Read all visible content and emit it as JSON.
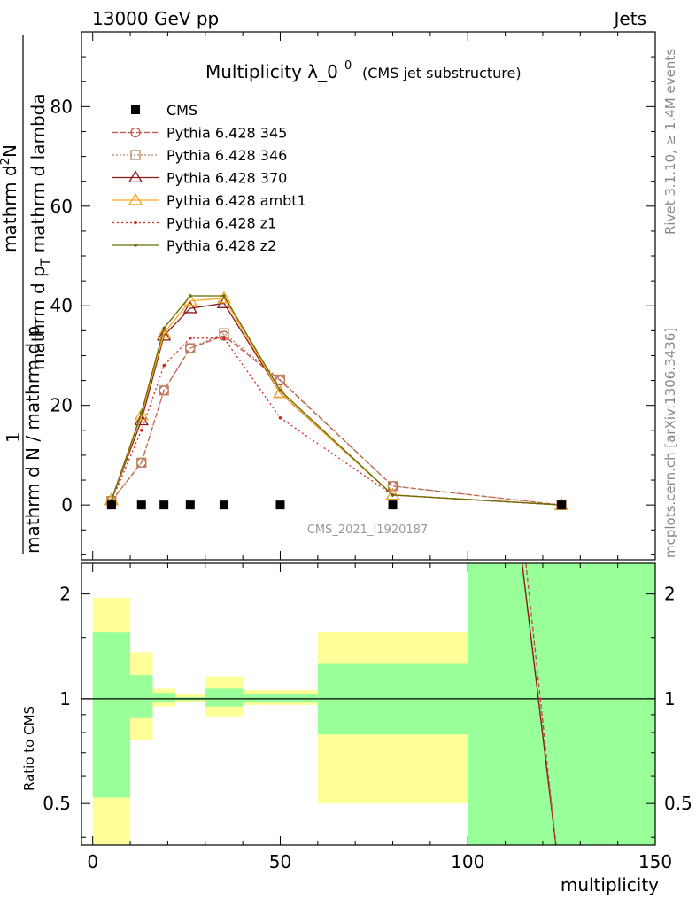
{
  "header": {
    "left": "13000 GeV pp",
    "right": "Jets"
  },
  "side_labels": {
    "rivet": "Rivet 3.1.10, ≥ 1.4M events",
    "mcplots": "mcplots.cern.ch [arXiv:1306.3436]"
  },
  "watermark": "CMS_2021_I1920187",
  "colors": {
    "green_band": "#99ff99",
    "yellow_band": "#ffff99",
    "pythia_345": "#c0504d",
    "pythia_346": "#b8875a",
    "pythia_370": "#8b1a1a",
    "pythia_ambt1": "#f5a623",
    "pythia_z1": "#d42a1a",
    "pythia_z2": "#6b6b00"
  },
  "chart_data": [
    {
      "type": "line",
      "title_main": "Multiplicity λ_0",
      "title_sup": "0",
      "title_sub": "(CMS jet substructure)",
      "ylabel": "1 / mathrm d N / mathrm d p_T mathrm d^2N / mathrm d p_T mathrm d lambda",
      "ylabel_parts": {
        "numerator_top": "mathrm d",
        "numerator_sup": "2",
        "numerator_rest": "N",
        "denominator_top": "mathrm d p",
        "denominator_sub": "T",
        "denominator_rest": " mathrm d lambda",
        "one": "1",
        "den_left": "mathrm d N / mathrm d p",
        "den_sub": "T"
      },
      "xlim": [
        -3,
        150
      ],
      "ylim": [
        -11,
        95
      ],
      "yticks": [
        0,
        20,
        40,
        60,
        80
      ],
      "legend_position": "top-left",
      "series": [
        {
          "name": "CMS",
          "x": [
            5,
            13,
            19,
            26,
            35,
            50,
            80,
            125
          ],
          "y": [
            0,
            0,
            0,
            0,
            0,
            0,
            0,
            0
          ]
        },
        {
          "name": "Pythia 6.428 345",
          "x": [
            5,
            13,
            19,
            26,
            35,
            50,
            80,
            125
          ],
          "y": [
            0.8,
            8.5,
            23,
            31.5,
            34,
            25,
            3.8,
            0
          ]
        },
        {
          "name": "Pythia 6.428 346",
          "x": [
            5,
            13,
            19,
            26,
            35,
            50,
            80,
            125
          ],
          "y": [
            0.8,
            8.5,
            23,
            31.5,
            34.5,
            25.2,
            3.8,
            0
          ]
        },
        {
          "name": "Pythia 6.428 370",
          "x": [
            5,
            13,
            19,
            26,
            35,
            50,
            80,
            125
          ],
          "y": [
            1,
            17,
            34,
            39.5,
            40.5,
            22.5,
            2,
            0
          ]
        },
        {
          "name": "Pythia 6.428 ambt1",
          "x": [
            5,
            13,
            19,
            26,
            35,
            50,
            80,
            125
          ],
          "y": [
            1,
            18,
            34.5,
            41,
            41.5,
            22.5,
            2,
            0
          ]
        },
        {
          "name": "Pythia 6.428 z1",
          "x": [
            5,
            13,
            19,
            26,
            35,
            50,
            80,
            125
          ],
          "y": [
            0.8,
            15,
            28,
            33.5,
            33.5,
            17.5,
            2,
            0
          ]
        },
        {
          "name": "Pythia 6.428 z2",
          "x": [
            5,
            13,
            19,
            26,
            35,
            50,
            80,
            125
          ],
          "y": [
            1,
            18.5,
            35.5,
            42,
            42,
            23,
            2,
            0
          ]
        }
      ]
    },
    {
      "type": "area",
      "ylabel": "Ratio to CMS",
      "xlabel": "multiplicity",
      "xlim": [
        -3,
        150
      ],
      "ylim": [
        0.38,
        2.45
      ],
      "scale": "log",
      "yticks": [
        0.5,
        1,
        2
      ],
      "ytick_labels": [
        "0.5",
        "1",
        "2"
      ],
      "xticks": [
        0,
        50,
        100,
        150
      ],
      "bands": [
        {
          "x0": 0,
          "x1": 10,
          "green": [
            0.52,
            1.55
          ],
          "yellow": [
            0.3,
            1.95
          ]
        },
        {
          "x0": 10,
          "x1": 16,
          "green": [
            0.88,
            1.17
          ],
          "yellow": [
            0.76,
            1.36
          ]
        },
        {
          "x0": 16,
          "x1": 22,
          "green": [
            0.98,
            1.04
          ],
          "yellow": [
            0.95,
            1.07
          ]
        },
        {
          "x0": 22,
          "x1": 30,
          "green": [
            0.99,
            1.01
          ],
          "yellow": [
            0.98,
            1.03
          ]
        },
        {
          "x0": 30,
          "x1": 40,
          "green": [
            0.95,
            1.07
          ],
          "yellow": [
            0.89,
            1.16
          ]
        },
        {
          "x0": 40,
          "x1": 60,
          "green": [
            0.98,
            1.03
          ],
          "yellow": [
            0.96,
            1.06
          ]
        },
        {
          "x0": 60,
          "x1": 100,
          "green": [
            0.79,
            1.26
          ],
          "yellow": [
            0.5,
            1.56
          ]
        },
        {
          "x0": 100,
          "x1": 150,
          "green": [
            0.3,
            3
          ],
          "yellow": [
            0.3,
            3
          ]
        }
      ],
      "ratio_lines": [
        {
          "name": "Pythia 6.428 370",
          "x": [
            114.5,
            123.5
          ],
          "y": [
            2.45,
            0.38
          ]
        },
        {
          "name": "Pythia 6.428 345",
          "x": [
            115.5,
            123.5
          ],
          "y": [
            2.45,
            0.38
          ]
        }
      ]
    }
  ]
}
